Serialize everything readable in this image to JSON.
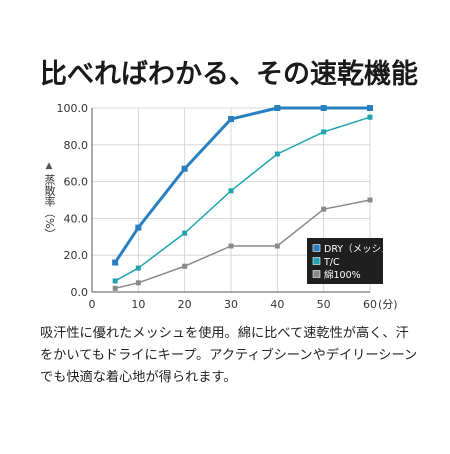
{
  "title": "比べればわかる、その速乾機能",
  "description": "吸汗性に優れたメッシュを使用。綿に比べて速乾性が高く、汗をかいてもドライにキープ。アクティブシーンやデイリーシーンでも快適な着心地が得られます。",
  "chart_data": {
    "type": "line",
    "ylabel": "蒸散率（%）",
    "xlabel": "",
    "x_unit_label": "(分)",
    "xlim": [
      0,
      60
    ],
    "ylim": [
      0,
      100
    ],
    "x_ticks": [
      "0",
      "10",
      "20",
      "30",
      "40",
      "50",
      "60"
    ],
    "y_ticks": [
      "0.0",
      "20.0",
      "40.0",
      "60.0",
      "80.0",
      "100.0"
    ],
    "grid": true,
    "legend_position": "bottom-right",
    "series": [
      {
        "name": "DRY（メッシュ）",
        "color": "#2a7fc1",
        "marker": "square",
        "x": [
          5,
          10,
          20,
          30,
          40,
          50,
          60
        ],
        "y": [
          16,
          35,
          67,
          94,
          100,
          100,
          100
        ]
      },
      {
        "name": "T/C",
        "color": "#1fa3b0",
        "marker": "square",
        "x": [
          5,
          10,
          20,
          30,
          40,
          50,
          60
        ],
        "y": [
          6,
          13,
          32,
          55,
          75,
          87,
          95
        ]
      },
      {
        "name": "綿100%",
        "color": "#8a8a8a",
        "marker": "square",
        "x": [
          5,
          10,
          20,
          30,
          40,
          50,
          60
        ],
        "y": [
          2,
          5,
          14,
          25,
          25,
          45,
          50
        ]
      }
    ]
  }
}
